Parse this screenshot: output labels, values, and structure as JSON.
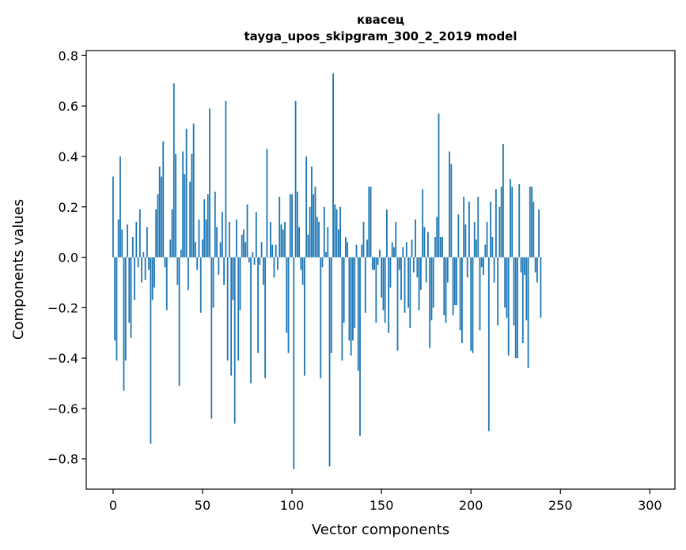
{
  "chart_data": {
    "type": "bar",
    "title_line1": "квасец",
    "title_line2": "tayga_upos_skipgram_300_2_2019 model",
    "xlabel": "Vector components",
    "ylabel": "Components values",
    "xlim": [
      -15,
      314
    ],
    "ylim": [
      -0.92,
      0.82
    ],
    "xticks": [
      0,
      50,
      100,
      150,
      200,
      250,
      300
    ],
    "xtick_labels": [
      "0",
      "50",
      "100",
      "150",
      "200",
      "250",
      "300"
    ],
    "yticks": [
      -0.8,
      -0.6,
      -0.4,
      -0.2,
      0.0,
      0.2,
      0.4,
      0.6,
      0.8
    ],
    "ytick_labels": [
      "−0.8",
      "−0.6",
      "−0.4",
      "−0.2",
      "0.0",
      "0.2",
      "0.4",
      "0.6",
      "0.8"
    ],
    "bar_color": "#1f77b4",
    "grid": false,
    "values": [
      0.32,
      -0.33,
      -0.41,
      0.15,
      0.4,
      0.11,
      -0.53,
      -0.41,
      0.13,
      -0.26,
      -0.32,
      0.08,
      -0.17,
      0.14,
      -0.04,
      0.19,
      -0.1,
      0.02,
      -0.09,
      0.12,
      -0.05,
      -0.74,
      -0.17,
      -0.12,
      0.19,
      0.25,
      0.36,
      0.32,
      0.46,
      -0.04,
      -0.21,
      0.0,
      0.07,
      0.19,
      0.69,
      0.41,
      -0.11,
      -0.51,
      0.03,
      0.42,
      0.33,
      0.51,
      -0.13,
      0.3,
      0.41,
      0.53,
      0.06,
      -0.05,
      0.15,
      -0.22,
      0.07,
      0.23,
      0.15,
      0.25,
      0.59,
      -0.64,
      -0.2,
      0.26,
      0.12,
      -0.07,
      0.06,
      0.18,
      -0.11,
      0.62,
      -0.41,
      0.14,
      -0.47,
      -0.17,
      -0.66,
      0.15,
      -0.41,
      -0.21,
      0.09,
      0.11,
      0.06,
      0.21,
      -0.02,
      -0.5,
      0.02,
      -0.03,
      0.18,
      -0.38,
      -0.03,
      0.06,
      -0.11,
      -0.48,
      0.43,
      0.0,
      0.14,
      0.05,
      -0.08,
      0.05,
      -0.05,
      0.24,
      0.13,
      0.11,
      0.14,
      -0.3,
      -0.38,
      0.25,
      0.25,
      -0.84,
      0.62,
      0.26,
      0.12,
      -0.05,
      -0.11,
      -0.47,
      0.4,
      0.09,
      0.2,
      0.36,
      0.25,
      0.28,
      0.16,
      0.14,
      -0.48,
      -0.04,
      0.2,
      0.02,
      0.12,
      -0.83,
      -0.38,
      0.73,
      0.21,
      0.19,
      0.11,
      0.2,
      -0.41,
      -0.26,
      0.08,
      0.06,
      -0.33,
      -0.39,
      -0.33,
      -0.28,
      0.05,
      -0.45,
      -0.71,
      0.05,
      0.14,
      -0.22,
      0.07,
      0.28,
      0.28,
      -0.05,
      -0.05,
      -0.26,
      -0.03,
      0.03,
      -0.16,
      -0.21,
      -0.26,
      0.19,
      -0.3,
      -0.12,
      0.06,
      0.04,
      0.14,
      -0.37,
      -0.05,
      -0.17,
      0.04,
      -0.22,
      0.06,
      -0.2,
      -0.28,
      0.07,
      -0.06,
      0.15,
      -0.08,
      -0.21,
      -0.13,
      0.27,
      0.12,
      -0.1,
      0.1,
      -0.36,
      -0.25,
      -0.2,
      0.08,
      0.16,
      0.57,
      0.08,
      0.08,
      -0.23,
      -0.26,
      -0.1,
      0.42,
      0.37,
      -0.23,
      -0.19,
      -0.19,
      0.17,
      -0.29,
      -0.34,
      0.24,
      0.13,
      -0.08,
      0.22,
      -0.37,
      -0.38,
      0.14,
      0.07,
      0.24,
      -0.29,
      -0.04,
      -0.07,
      0.05,
      0.14,
      -0.69,
      0.22,
      0.08,
      -0.1,
      0.27,
      -0.27,
      0.2,
      0.28,
      0.45,
      -0.2,
      -0.24,
      -0.39,
      0.31,
      0.28,
      -0.27,
      -0.4,
      -0.4,
      0.29,
      -0.06,
      -0.34,
      -0.07,
      -0.25,
      -0.44,
      0.28,
      0.28,
      0.22,
      -0.06,
      -0.1,
      0.19,
      -0.24
    ]
  }
}
